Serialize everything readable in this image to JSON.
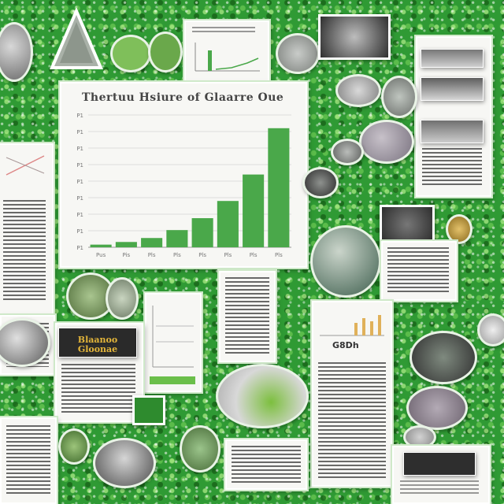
{
  "main_chart": {
    "title": "Thertuu Hsiure of Glaarre Oue",
    "chart_data": {
      "type": "bar",
      "title": "Thertuu Hsiure of Glaarre Oue",
      "categories": [
        "Pus",
        "Pis",
        "Pls",
        "Pls",
        "Pls",
        "Pls",
        "Pls",
        "Pls"
      ],
      "values": [
        2,
        4,
        7,
        13,
        22,
        35,
        55,
        90
      ],
      "ylim": [
        0,
        100
      ],
      "ytick_labels": [
        "P1",
        "P1",
        "P1",
        "P1",
        "P1",
        "P1",
        "P1",
        "P1",
        "P1"
      ],
      "grid": true,
      "bar_color": "#4aa84a"
    }
  },
  "poster_left": {
    "text": "Blaanoo Gloonae"
  },
  "badge_right": {
    "text": "G8Dh"
  },
  "colors": {
    "background": "#2f9a34",
    "card": "#f7f7f4",
    "bar": "#4aa84a"
  }
}
